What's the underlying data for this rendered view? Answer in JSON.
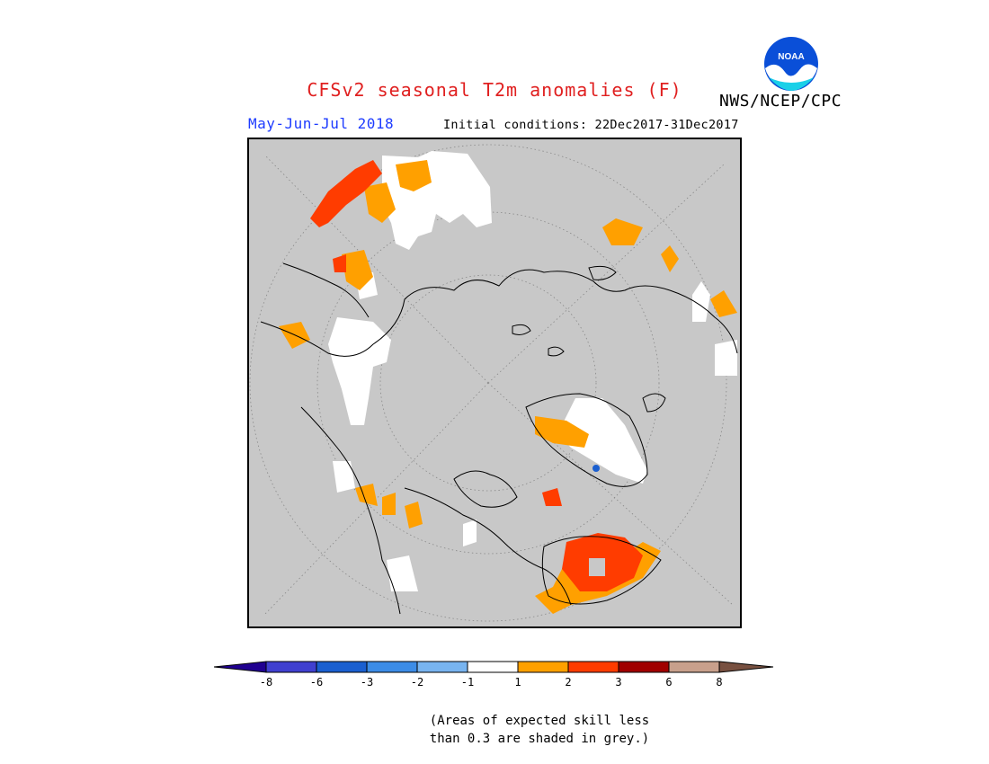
{
  "header": {
    "title": "CFSv2 seasonal T2m anomalies (F)",
    "period": "May-Jun-Jul 2018",
    "initial_conditions": "Initial conditions: 22Dec2017-31Dec2017",
    "org": "NWS/NCEP/CPC",
    "logo_text": "NOAA"
  },
  "map": {
    "projection": "north polar stereographic",
    "background_color": "#c8c8c8",
    "ocean_color": "#c8c8c8"
  },
  "legend": {
    "colors": [
      "#200090",
      "#4040d0",
      "#1a5fd0",
      "#3c8ce6",
      "#78b4f0",
      "#ffffff",
      "#ffa000",
      "#ff3c00",
      "#a00000",
      "#c8a08c",
      "#785040"
    ],
    "labels": [
      "-8",
      "-6",
      "-3",
      "-2",
      "-1",
      "1",
      "2",
      "3",
      "6",
      "8"
    ]
  },
  "note": {
    "line1": "(Areas of expected skill less",
    "line2": "than 0.3 are shaded in grey.)"
  }
}
